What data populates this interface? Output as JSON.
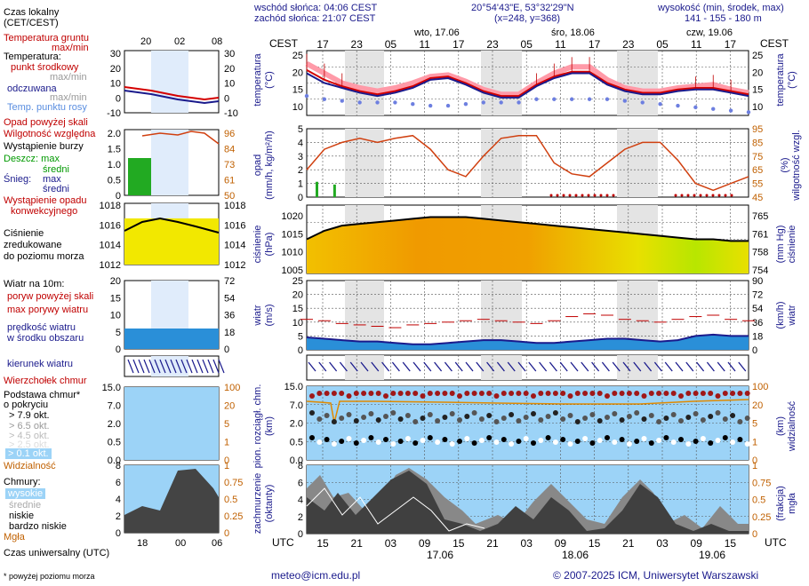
{
  "header": {
    "sunrise": "wschód słońca: 04:06 CEST",
    "sunset": "zachód słońca: 21:07 CEST",
    "coords": "20°54'43\"E, 53°32'29\"N",
    "grid": "(x=248, y=368)",
    "height_title": "wysokość (min, środek, max)",
    "height_values": "141 - 155 - 180 m"
  },
  "time_axis": {
    "cest_label": "CEST",
    "utc_label": "UTC",
    "cest_hours": [
      "17",
      "23",
      "05",
      "11",
      "17",
      "23",
      "05",
      "11",
      "17",
      "23",
      "05",
      "11",
      "17"
    ],
    "utc_hours": [
      "15",
      "21",
      "03",
      "09",
      "15",
      "21",
      "03",
      "09",
      "15",
      "21",
      "03",
      "09",
      "15"
    ],
    "days": [
      "wto, 17.06",
      "śro, 18.06",
      "czw, 19.06"
    ],
    "utc_dates": [
      "17.06",
      "18.06",
      "19.06"
    ]
  },
  "legend": {
    "local_time": "Czas lokalny",
    "local_time_zone": "(CET/CEST)",
    "legend_hours_top": [
      "20",
      "02",
      "08"
    ],
    "legend_hours_bottom": [
      "18",
      "00",
      "06"
    ],
    "ground_temp": "Temperatura gruntu",
    "ground_minmax": "max/min",
    "temperature": "Temperatura:",
    "center_point": "punkt środkowy",
    "max_min": "max/min",
    "perceived": "odczuwana",
    "max_min2": "max/min",
    "dew_point": "Temp. punktu rosy",
    "precip_above": "Opad powyżej skali",
    "humidity": "Wilgotność względna",
    "storm": "Wystąpienie burzy",
    "rain_max": "Deszcz: max",
    "rain_mean": "średni",
    "snow_max": "Śnieg:",
    "snow_max2": "max",
    "snow_mean": "średni",
    "conv": "Wystąpienie opadu",
    "conv2": "konwekcyjnego",
    "pressure1": "Ciśnienie",
    "pressure2": "zredukowane",
    "pressure3": "do poziomu morza",
    "wind_at": "Wiatr na 10m:",
    "gust_above": "poryw powyżej skali",
    "max_gust": "max porywy wiatru",
    "wind_speed": "prędkość wiatru",
    "wind_speed2": "w środku obszaru",
    "wind_dir": "kierunek wiatru",
    "cloud_top": "Wierzchołek chmur",
    "cloud_base": "Podstawa chmur*",
    "cloud_base2": "o pokryciu",
    "okt79": "> 7.9 okt.",
    "okt65": "> 6.5 okt.",
    "okt45": "> 4.5 okt.",
    "okt25": "> 2.5 okt.",
    "okt01": "> 0.1 okt.",
    "visibility": "Widzialność",
    "clouds": "Chmury:",
    "high": "wysokie",
    "mid": "średnie",
    "low": "niskie",
    "very_low": "bardzo niskie",
    "fog": "Mgła",
    "utc_time": "Czas uniwersalny (UTC)",
    "footnote": "* powyżej poziomu morza"
  },
  "panel_labels": {
    "temp_l": "temperatura",
    "temp_l2": "(°C)",
    "temp_r": "temperatura",
    "temp_r2": "(°C)",
    "precip_l": "opad",
    "precip_l2": "(mm/h, kg/m²/h)",
    "hum_r": "wilgotność wzgl.",
    "hum_r2": "(%)",
    "pres_l": "ciśnienie",
    "pres_l2": "(hPa)",
    "pres_r": "ciśnienie",
    "pres_r2": "(mm Hg)",
    "wind_l": "wiatr",
    "wind_l2": "(m/s)",
    "wind_r": "wiatr",
    "wind_r2": "(km/h)",
    "cloud_l": "pion. rozciągł. chm.",
    "cloud_l2": "(km)",
    "vis_r": "widzialność",
    "vis_r2": "(km)",
    "cov_l": "zachmurzenie",
    "cov_l2": "(oktanty)",
    "fog_r": "mgła",
    "fog_r2": "(frakcja)"
  },
  "axes": {
    "temp": [
      "25",
      "20",
      "15",
      "10"
    ],
    "temp_legend": [
      "30",
      "20",
      "10",
      "0",
      "-10"
    ],
    "precip": [
      "5",
      "4",
      "3",
      "2",
      "1",
      "0"
    ],
    "precip_legend": [
      "2.0",
      "1.5",
      "1.0",
      "0.5",
      "0"
    ],
    "humidity": [
      "95",
      "85",
      "75",
      "65",
      "55",
      "45"
    ],
    "humidity_legend": [
      "96",
      "84",
      "73",
      "61",
      "50"
    ],
    "pressure": [
      "1020",
      "1015",
      "1010",
      "1005"
    ],
    "pressure_legend": [
      "1018",
      "1016",
      "1014",
      "1012"
    ],
    "pressure_mmhg": [
      "765",
      "761",
      "758",
      "754"
    ],
    "wind": [
      "25",
      "20",
      "15",
      "10",
      "5",
      "0"
    ],
    "wind_legend": [
      "20",
      "15",
      "10",
      "5",
      "0"
    ],
    "wind_kmh": [
      "90",
      "72",
      "54",
      "36",
      "18",
      "0"
    ],
    "wind_kmh_legend": [
      "72",
      "54",
      "36",
      "18",
      "0"
    ],
    "cloud": [
      "15.0",
      "7.0",
      "2.0",
      "0.5",
      "0.0"
    ],
    "vis": [
      "100",
      "20",
      "5",
      "1",
      "0"
    ],
    "octant": [
      "8",
      "6",
      "4",
      "2",
      "0"
    ],
    "fog": [
      "1",
      "0.75",
      "0.5",
      "0.25",
      "0"
    ]
  },
  "footer": {
    "email": "meteo@icm.edu.pl",
    "copyright": "© 2007-2025 ICM, Uniwersytet Warszawski"
  },
  "chart_data": {
    "type": "line",
    "x": [
      "15",
      "18",
      "21",
      "00",
      "03",
      "06",
      "09",
      "12",
      "15",
      "18",
      "21",
      "00",
      "03",
      "06",
      "09",
      "12",
      "15",
      "18",
      "21",
      "00",
      "03",
      "06",
      "09",
      "12",
      "15",
      "18"
    ],
    "series": [
      {
        "name": "temperatura max",
        "values": [
          23,
          20,
          17,
          15.5,
          14.5,
          15.5,
          17,
          19,
          19.5,
          17.5,
          15,
          13.5,
          13.5,
          17,
          20,
          22,
          22,
          18,
          15.5,
          14.5,
          14.5,
          15.5,
          16,
          16.5,
          15,
          14
        ]
      },
      {
        "name": "temperatura",
        "values": [
          21,
          18,
          16,
          14.5,
          13.5,
          14.5,
          16,
          18.5,
          19,
          17,
          14.5,
          13,
          13,
          16.5,
          19,
          20.5,
          20.5,
          17,
          15,
          14,
          14,
          15,
          15.5,
          15.5,
          14.5,
          13.5
        ]
      },
      {
        "name": "temperatura odczuwana",
        "values": [
          20,
          17,
          15.5,
          14,
          13,
          14,
          15.5,
          18,
          18.5,
          16.5,
          14,
          12.5,
          12.5,
          16,
          18.5,
          20,
          20,
          16.5,
          14.5,
          13.5,
          13.5,
          14.5,
          15,
          15,
          14,
          13
        ]
      },
      {
        "name": "punkt rosy",
        "values": [
          13,
          12,
          11.5,
          11,
          11,
          11,
          10.5,
          10,
          10,
          10.5,
          11,
          11,
          11,
          12,
          12,
          12,
          12,
          12,
          11.5,
          11,
          10.5,
          10,
          9.5,
          9,
          8.5,
          8
        ]
      },
      {
        "name": "wilgotność",
        "values": [
          65,
          80,
          85,
          88,
          85,
          88,
          90,
          80,
          65,
          60,
          75,
          88,
          90,
          90,
          70,
          62,
          60,
          70,
          80,
          85,
          85,
          72,
          55,
          50,
          55,
          60
        ]
      },
      {
        "name": "ciśnienie",
        "values": [
          1014,
          1016.5,
          1018,
          1018.5,
          1019,
          1019.5,
          1020,
          1020.5,
          1020.5,
          1020.5,
          1020,
          1019.5,
          1019,
          1018.5,
          1018,
          1017.5,
          1017,
          1016.5,
          1016,
          1015.5,
          1015,
          1014.5,
          1014,
          1014,
          1013.5,
          1013.5
        ]
      },
      {
        "name": "prędkość wiatru",
        "values": [
          4.5,
          4,
          3.5,
          3,
          3,
          2.5,
          2,
          2,
          2.5,
          3,
          3.5,
          3.5,
          3,
          2.5,
          2.5,
          3,
          3.5,
          4,
          4,
          3.5,
          3,
          3.5,
          5,
          5.5,
          5,
          5
        ]
      },
      {
        "name": "porywy",
        "values": [
          11,
          10.5,
          9.5,
          9,
          8.5,
          8,
          9,
          9.5,
          10,
          10.5,
          11,
          10.5,
          10,
          9.5,
          10.5,
          12,
          13,
          12.5,
          11,
          10.5,
          10,
          11,
          12,
          12.5,
          11,
          10.5
        ]
      },
      {
        "name": "opad max",
        "values": [
          0.6,
          0.4,
          0,
          0,
          0,
          0,
          0,
          0,
          0,
          0,
          0,
          0,
          0,
          0,
          0,
          0,
          0,
          0,
          0,
          0,
          0,
          0,
          0,
          0,
          0,
          0
        ]
      }
    ],
    "ylabels": {
      "temp": "temperatura (°C)",
      "precip": "opad (mm/h)",
      "humidity": "wilgotność wzgl. (%)",
      "pressure": "ciśnienie (hPa)",
      "wind": "wiatr (m/s)"
    },
    "ylim": {
      "temp": [
        7,
        27
      ],
      "precip": [
        0,
        5
      ],
      "humidity": [
        45,
        95
      ],
      "pressure": [
        1004,
        1024
      ],
      "wind": [
        0,
        25
      ]
    }
  }
}
